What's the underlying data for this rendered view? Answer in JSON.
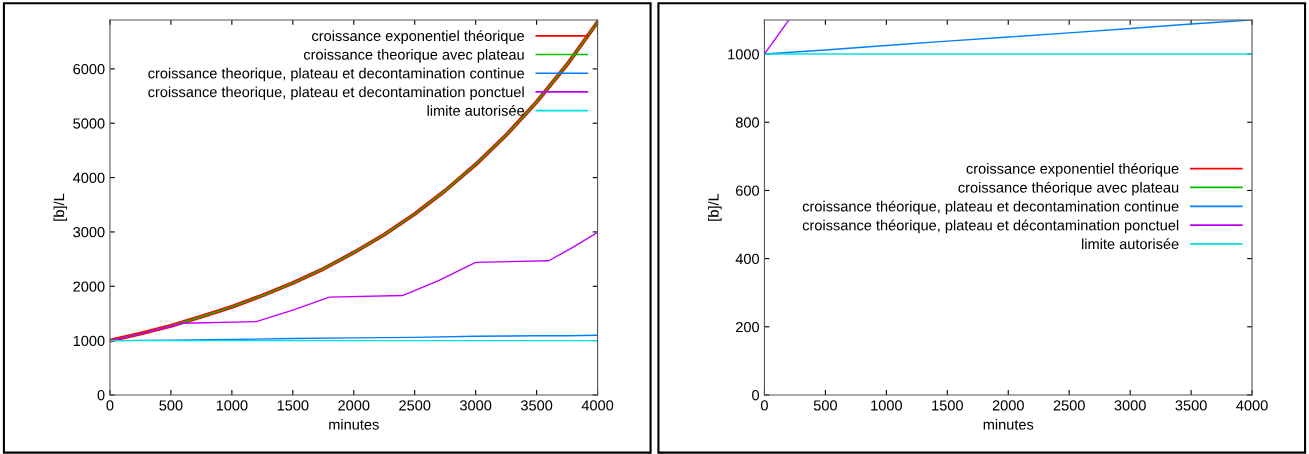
{
  "chart_data": [
    {
      "type": "line",
      "xlabel": "minutes",
      "ylabel": "[b]/L",
      "xlim": [
        0,
        4000
      ],
      "ylim": [
        0,
        6900
      ],
      "xticks": [
        0,
        500,
        1000,
        1500,
        2000,
        2500,
        3000,
        3500,
        4000
      ],
      "yticks": [
        0,
        1000,
        2000,
        3000,
        4000,
        5000,
        6000
      ],
      "grid": false,
      "legend": "top right",
      "series": [
        {
          "name": "croissance exponentiel théorique",
          "color": "#ff0000",
          "x": [
            0,
            250,
            500,
            750,
            1000,
            1250,
            1500,
            1750,
            2000,
            2250,
            2500,
            2750,
            3000,
            3250,
            3500,
            3750,
            4000
          ],
          "values": [
            1000,
            1130,
            1270,
            1440,
            1620,
            1830,
            2060,
            2320,
            2620,
            2950,
            3330,
            3760,
            4240,
            4780,
            5390,
            6080,
            6860
          ]
        },
        {
          "name": "croissance theorique avec plateau",
          "color": "#00c000",
          "x": [
            0,
            250,
            500,
            750,
            1000,
            1250,
            1500,
            1750,
            2000,
            2250,
            2500,
            2750,
            3000,
            3250,
            3500,
            3750,
            4000
          ],
          "values": [
            1000,
            1130,
            1270,
            1440,
            1620,
            1830,
            2060,
            2320,
            2620,
            2950,
            3330,
            3760,
            4240,
            4780,
            5390,
            6080,
            6860
          ]
        },
        {
          "name": "croissance theorique, plateau et decontamination continue",
          "color": "#0080ff",
          "x": [
            0,
            500,
            1000,
            1500,
            2000,
            2500,
            3000,
            3500,
            3750,
            4000
          ],
          "values": [
            1000,
            1010,
            1020,
            1040,
            1050,
            1060,
            1080,
            1090,
            1090,
            1100
          ]
        },
        {
          "name": "croissance theorique, plateau et decontamination ponctuel",
          "color": "#c000ff",
          "x": [
            0,
            200,
            400,
            600,
            1200,
            1500,
            1800,
            2400,
            2700,
            3000,
            3600,
            3800,
            4000
          ],
          "values": [
            1000,
            1100,
            1210,
            1320,
            1350,
            1560,
            1800,
            1830,
            2110,
            2440,
            2470,
            2720,
            2990
          ]
        },
        {
          "name": "limite autorisée",
          "color": "#00e0e0",
          "x": [
            0,
            4000
          ],
          "values": [
            1000,
            1000
          ]
        }
      ]
    },
    {
      "type": "line",
      "xlabel": "minutes",
      "ylabel": "[b]/L",
      "xlim": [
        0,
        4000
      ],
      "ylim": [
        0,
        1100
      ],
      "xticks": [
        0,
        500,
        1000,
        1500,
        2000,
        2500,
        3000,
        3500,
        4000
      ],
      "yticks": [
        0,
        200,
        400,
        600,
        800,
        1000
      ],
      "grid": false,
      "legend": "right",
      "series": [
        {
          "name": "croissance exponentiel théorique",
          "color": "#ff0000"
        },
        {
          "name": "croissance théorique avec plateau",
          "color": "#00c000"
        },
        {
          "name": "croissance théorique, plateau et decontamination continue",
          "color": "#0080ff",
          "x": [
            0,
            500,
            1000,
            1500,
            2000,
            2500,
            3000,
            3500,
            3750,
            4000
          ],
          "values": [
            1000,
            1012,
            1025,
            1038,
            1050,
            1062,
            1075,
            1088,
            1094,
            1100
          ]
        },
        {
          "name": "croissance théorique, plateau et décontamination ponctuel",
          "color": "#c000ff",
          "x": [
            0,
            200
          ],
          "values": [
            1000,
            1100
          ]
        },
        {
          "name": "limite autorisée",
          "color": "#00e0e0",
          "x": [
            0,
            4000
          ],
          "values": [
            1000,
            1000
          ]
        }
      ]
    }
  ]
}
